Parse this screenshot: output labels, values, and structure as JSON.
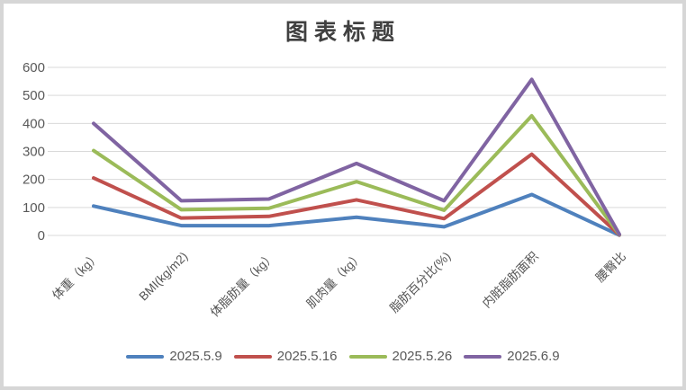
{
  "chart_data": {
    "type": "line",
    "title": "图表标题",
    "categories": [
      "体重（kg）",
      "BMI(kg/m2)",
      "体脂肪量（kg）",
      "肌肉量（kg）",
      "脂肪百分比(%)",
      "内脏脂肪面积",
      "腰臀比"
    ],
    "series": [
      {
        "name": "2025.5.9",
        "color": "#4F81BD",
        "values": [
          105,
          35,
          35,
          65,
          31,
          146,
          1
        ]
      },
      {
        "name": "2025.5.16",
        "color": "#C0504D",
        "values": [
          205,
          62,
          68,
          127,
          60,
          290,
          2
        ]
      },
      {
        "name": "2025.5.26",
        "color": "#9BBB59",
        "values": [
          303,
          92,
          97,
          192,
          90,
          427,
          3
        ]
      },
      {
        "name": "2025.6.9",
        "color": "#8064A2",
        "values": [
          400,
          124,
          130,
          257,
          124,
          557,
          4
        ]
      }
    ],
    "y_ticks": [
      0,
      100,
      200,
      300,
      400,
      500,
      600
    ],
    "ylim": [
      0,
      600
    ],
    "xlabel": "",
    "ylabel": "",
    "grid": true,
    "legend_position": "bottom",
    "gridline_color": "#d9d9d9",
    "axis_label_color": "#595959"
  }
}
